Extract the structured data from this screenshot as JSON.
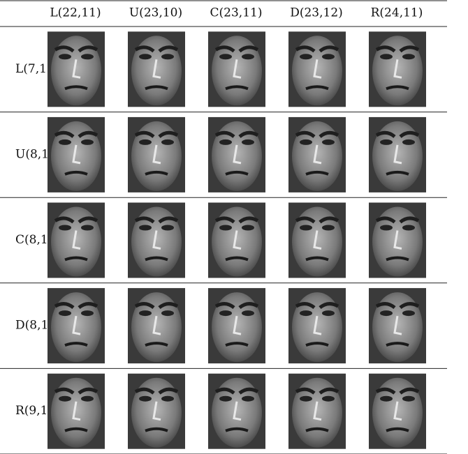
{
  "table": {
    "header": [
      "L(22,11)",
      "U(23,10)",
      "C(23,11)",
      "D(23,12)",
      "R(24,11)"
    ],
    "rows": [
      {
        "label": "L(7,1"
      },
      {
        "label": "U(8,1"
      },
      {
        "label": "C(8,1"
      },
      {
        "label": "D(8,1"
      },
      {
        "label": "R(9,1"
      }
    ]
  }
}
